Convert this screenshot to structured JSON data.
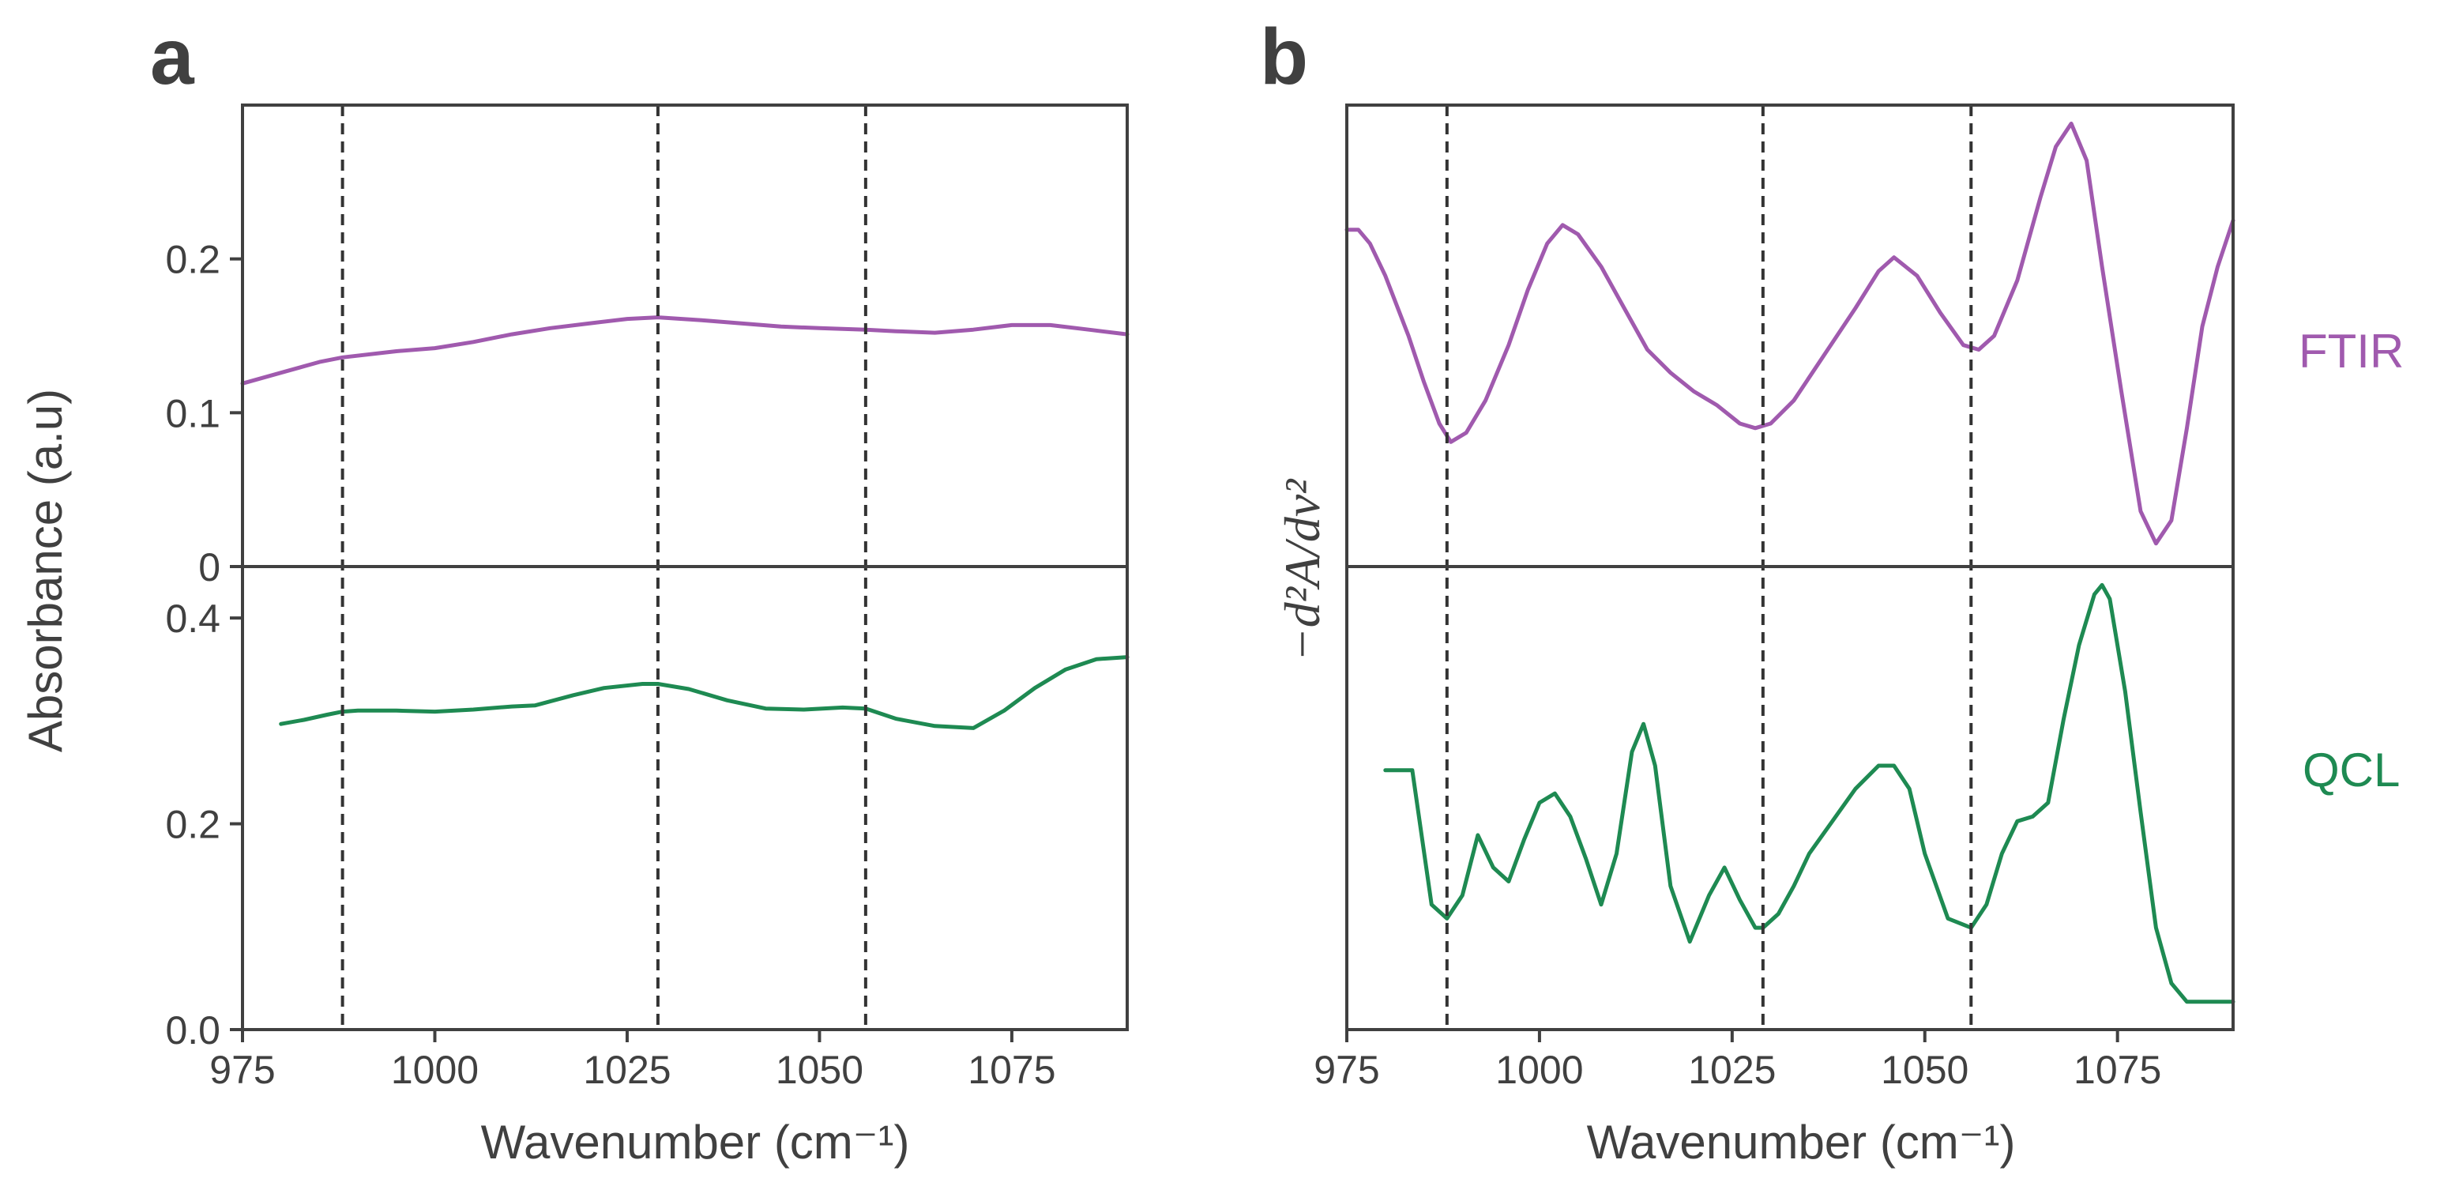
{
  "chart_data": [
    {
      "panel": "a",
      "type": "line",
      "xlabel": "Wavenumber (cm⁻¹)",
      "ylabel": "Absorbance (a.u)",
      "xlim": [
        975,
        1090
      ],
      "x_ticks": [
        "975",
        "1000",
        "1025",
        "1050",
        "1075"
      ],
      "x_tick_values": [
        975,
        1000,
        1025,
        1050,
        1075
      ],
      "reference_lines_x": [
        988,
        1029,
        1056
      ],
      "subplots": [
        {
          "name": "FTIR",
          "color": "#a05aae",
          "ylim": [
            0,
            0.3
          ],
          "y_ticks": [
            "0",
            "0.1",
            "0.2"
          ],
          "y_tick_values": [
            0,
            0.1,
            0.2
          ],
          "x": [
            975,
            980,
            985,
            988,
            995,
            1000,
            1005,
            1010,
            1015,
            1020,
            1025,
            1029,
            1035,
            1040,
            1045,
            1050,
            1056,
            1060,
            1065,
            1070,
            1075,
            1080,
            1085,
            1090
          ],
          "y": [
            0.119,
            0.126,
            0.133,
            0.136,
            0.14,
            0.142,
            0.146,
            0.151,
            0.155,
            0.158,
            0.161,
            0.162,
            0.16,
            0.158,
            0.156,
            0.155,
            0.154,
            0.153,
            0.152,
            0.154,
            0.157,
            0.157,
            0.154,
            0.151
          ]
        },
        {
          "name": "QCL",
          "color": "#1e8a52",
          "ylim": [
            0,
            0.45
          ],
          "y_ticks": [
            "0.0",
            "0.2",
            "0.4"
          ],
          "y_tick_values": [
            0,
            0.2,
            0.4
          ],
          "x": [
            980,
            983,
            986,
            988,
            990,
            995,
            1000,
            1005,
            1010,
            1013,
            1018,
            1022,
            1027,
            1029,
            1033,
            1038,
            1043,
            1048,
            1053,
            1056,
            1060,
            1065,
            1070,
            1074,
            1078,
            1082,
            1086,
            1090
          ],
          "y": [
            0.297,
            0.301,
            0.306,
            0.309,
            0.31,
            0.31,
            0.309,
            0.311,
            0.314,
            0.315,
            0.325,
            0.332,
            0.336,
            0.336,
            0.331,
            0.32,
            0.312,
            0.311,
            0.313,
            0.312,
            0.302,
            0.295,
            0.293,
            0.31,
            0.332,
            0.35,
            0.36,
            0.362
          ]
        }
      ]
    },
    {
      "panel": "b",
      "type": "line",
      "xlabel": "Wavenumber (cm⁻¹)",
      "ylabel": "−d²A/dν²",
      "xlim": [
        975,
        1090
      ],
      "x_ticks": [
        "975",
        "1000",
        "1025",
        "1050",
        "1075"
      ],
      "x_tick_values": [
        975,
        1000,
        1025,
        1050,
        1075
      ],
      "y_ticks": [],
      "reference_lines_x": [
        988,
        1029,
        1056
      ],
      "subplots": [
        {
          "name": "FTIR",
          "label": "FTIR",
          "color": "#a05aae",
          "ylim": [
            0,
            1
          ],
          "x": [
            975,
            976.5,
            978,
            980,
            983,
            985,
            987,
            988.5,
            990.5,
            993,
            996,
            998.5,
            1001,
            1003,
            1005,
            1008,
            1011,
            1014,
            1017,
            1020,
            1023,
            1026,
            1028,
            1030,
            1033,
            1037,
            1041,
            1044,
            1046,
            1049,
            1052,
            1055,
            1057,
            1059,
            1062,
            1065,
            1067,
            1069,
            1071,
            1073,
            1075.5,
            1078,
            1080,
            1082,
            1084,
            1086,
            1088,
            1090
          ],
          "y": [
            0.73,
            0.73,
            0.7,
            0.63,
            0.5,
            0.4,
            0.31,
            0.27,
            0.29,
            0.36,
            0.48,
            0.6,
            0.7,
            0.74,
            0.72,
            0.65,
            0.56,
            0.47,
            0.42,
            0.38,
            0.35,
            0.31,
            0.3,
            0.31,
            0.36,
            0.46,
            0.56,
            0.64,
            0.67,
            0.63,
            0.55,
            0.48,
            0.47,
            0.5,
            0.62,
            0.8,
            0.91,
            0.96,
            0.88,
            0.65,
            0.38,
            0.12,
            0.05,
            0.1,
            0.3,
            0.52,
            0.65,
            0.75
          ]
        },
        {
          "name": "QCL",
          "label": "QCL",
          "color": "#1e8a52",
          "ylim": [
            0,
            1
          ],
          "x": [
            980,
            982,
            983.5,
            986,
            988,
            990,
            992,
            994,
            996,
            998,
            1000,
            1002,
            1004,
            1006,
            1008,
            1010,
            1012,
            1013.5,
            1015,
            1017,
            1019.5,
            1022,
            1024,
            1026,
            1028,
            1029,
            1031,
            1033,
            1035,
            1038,
            1041,
            1044,
            1046,
            1048,
            1050,
            1053,
            1056,
            1058,
            1060,
            1062,
            1064,
            1066,
            1068,
            1070,
            1072,
            1073,
            1074,
            1076,
            1078,
            1080,
            1082,
            1084,
            1086,
            1088,
            1090
          ],
          "y": [
            0.56,
            0.56,
            0.56,
            0.27,
            0.24,
            0.29,
            0.42,
            0.35,
            0.32,
            0.41,
            0.49,
            0.51,
            0.46,
            0.37,
            0.27,
            0.38,
            0.6,
            0.66,
            0.57,
            0.31,
            0.19,
            0.29,
            0.35,
            0.28,
            0.22,
            0.22,
            0.25,
            0.31,
            0.38,
            0.45,
            0.52,
            0.57,
            0.57,
            0.52,
            0.38,
            0.24,
            0.22,
            0.27,
            0.38,
            0.45,
            0.46,
            0.49,
            0.67,
            0.83,
            0.94,
            0.96,
            0.93,
            0.73,
            0.47,
            0.22,
            0.1,
            0.06,
            0.06,
            0.06,
            0.06
          ]
        }
      ]
    }
  ]
}
